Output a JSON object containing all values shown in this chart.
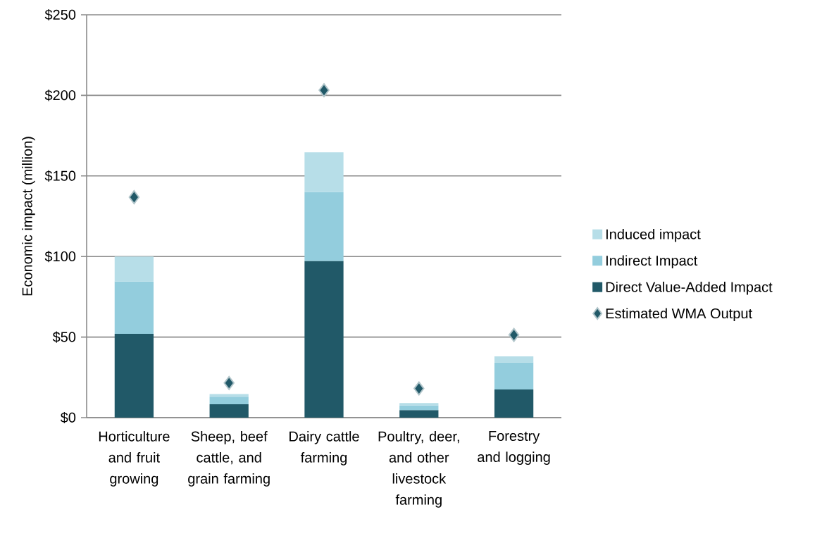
{
  "chart_data": {
    "type": "bar",
    "stacked": true,
    "ylabel": "Economic impact (million)",
    "categories": [
      "Horticulture and fruit growing",
      "Sheep, beef cattle, and grain farming",
      "Dairy cattle farming",
      "Poultry, deer, and other livestock farming",
      "Forestry and logging"
    ],
    "series": [
      {
        "name": "Direct Value-Added Impact",
        "color": "#215968",
        "values": [
          52,
          8.3,
          97.2,
          4.7,
          17.5
        ]
      },
      {
        "name": "Indirect Impact",
        "color": "#93cddd",
        "values": [
          32.5,
          4.7,
          42.8,
          2.8,
          16.8
        ]
      },
      {
        "name": "Induced impact",
        "color": "#b7dee8",
        "values": [
          15.5,
          1.6,
          24.7,
          1.6,
          3.7
        ]
      },
      {
        "name": "Estimated WMA Output",
        "type": "scatter",
        "marker": "diamond",
        "color": "#215968",
        "values": [
          136.8,
          21.5,
          203.2,
          18.1,
          51.3
        ]
      }
    ],
    "ylim": [
      0,
      250
    ],
    "yticks": [
      {
        "value": 0,
        "label": "$0"
      },
      {
        "value": 50,
        "label": "$50"
      },
      {
        "value": 100,
        "label": "$100"
      },
      {
        "value": 150,
        "label": "$150"
      },
      {
        "value": 200,
        "label": "$200"
      },
      {
        "value": 250,
        "label": "$250"
      }
    ],
    "grid": "y",
    "legend": "right"
  }
}
